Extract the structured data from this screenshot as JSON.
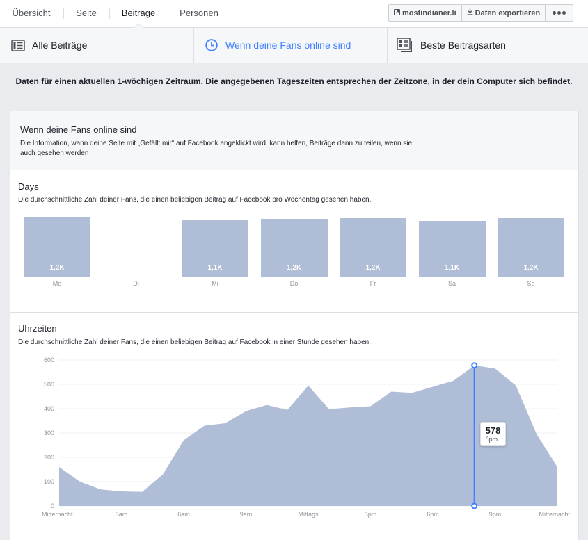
{
  "nav": {
    "tabs": [
      {
        "label": "Übersicht"
      },
      {
        "label": "Seite"
      },
      {
        "label": "Beiträge"
      },
      {
        "label": "Personen"
      }
    ],
    "active_tab": "Beiträge",
    "domain_button": "mostindianer.li",
    "export_button": "Daten exportieren"
  },
  "subtabs": [
    {
      "label": "Alle Beiträge",
      "icon": "list-icon"
    },
    {
      "label": "Wenn deine Fans online sind",
      "icon": "clock-icon"
    },
    {
      "label": "Beste Beitragsarten",
      "icon": "post-types-icon"
    }
  ],
  "accent_color": "#4080ff",
  "notice": "Daten für einen aktuellen 1-wöchigen Zeitraum. Die angegebenen Tageszeiten entsprechen der Zeitzone, in der dein Computer sich befindet.",
  "panel": {
    "title": "Wenn deine Fans online sind",
    "description": "Die Information, wann deine Seite mit „Gefällt mir“ auf Facebook angeklickt wird, kann helfen, Beiträge dann zu teilen, wenn sie auch gesehen werden"
  },
  "days_section": {
    "title": "Days",
    "description": "Die durchschnittliche Zahl deiner Fans, die einen beliebigen Beitrag auf Facebook pro Wochentag gesehen haben."
  },
  "hours_section": {
    "title": "Uhrzeiten",
    "description": "Die durchschnittliche Zahl deiner Fans, die einen beliebigen Beitrag auf Facebook in einer Stunde gesehen haben."
  },
  "chart_data": [
    {
      "type": "bar",
      "categories": [
        "Mo",
        "Di",
        "Mi",
        "Do",
        "Fr",
        "Sa",
        "So"
      ],
      "values": [
        1200,
        null,
        1150,
        1160,
        1180,
        1120,
        1190
      ],
      "data_labels": [
        "1,2K",
        "",
        "1,1K",
        "1,2K",
        "1,2K",
        "1,1K",
        "1,2K"
      ],
      "bar_color": "#afbdd6"
    },
    {
      "type": "area",
      "x": [
        0,
        1,
        2,
        3,
        4,
        5,
        6,
        7,
        8,
        9,
        10,
        11,
        12,
        13,
        14,
        15,
        16,
        17,
        18,
        19,
        20,
        21,
        22,
        23,
        24
      ],
      "values": [
        160,
        100,
        68,
        60,
        58,
        130,
        270,
        330,
        340,
        390,
        415,
        395,
        495,
        398,
        405,
        410,
        470,
        465,
        490,
        515,
        578,
        565,
        495,
        295,
        160
      ],
      "x_tick_labels": [
        {
          "x": 0,
          "label": "Mitternacht"
        },
        {
          "x": 3,
          "label": "3am"
        },
        {
          "x": 6,
          "label": "6am"
        },
        {
          "x": 9,
          "label": "9am"
        },
        {
          "x": 12,
          "label": "Mittags"
        },
        {
          "x": 15,
          "label": "3pm"
        },
        {
          "x": 18,
          "label": "6pm"
        },
        {
          "x": 21,
          "label": "9pm"
        },
        {
          "x": 24,
          "label": "Mitternacht"
        }
      ],
      "y_ticks": [
        0,
        100,
        200,
        300,
        400,
        500,
        600
      ],
      "ylim": [
        0,
        600
      ],
      "grid": true,
      "fill_color": "#afbdd6",
      "highlight": {
        "x": 20,
        "value": "578",
        "label": "8pm"
      }
    }
  ]
}
